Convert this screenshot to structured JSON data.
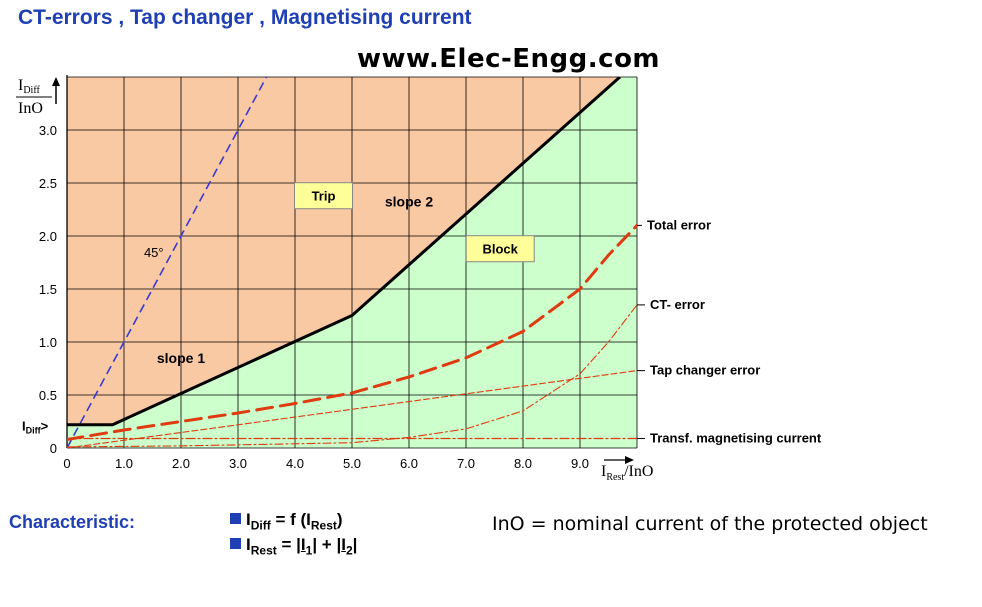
{
  "slide": {
    "title": "CT-errors , Tap changer , Magnetising current",
    "watermark": "www.Elec-Engg.com"
  },
  "chart_data": {
    "type": "line",
    "xlim": [
      0,
      10
    ],
    "ylim": [
      0,
      3.5
    ],
    "x_ticks": [
      "0",
      "1.0",
      "2.0",
      "3.0",
      "4.0",
      "5.0",
      "6.0",
      "7.0",
      "8.0",
      "9.0"
    ],
    "y_ticks": [
      "0",
      "0.5",
      "1.0",
      "1.5",
      "2.0",
      "2.5",
      "3.0"
    ],
    "grid": true,
    "y_axis_label": {
      "num": "I",
      "num_sub": "Diff",
      "den": "InO"
    },
    "x_axis_label": {
      "num": "I",
      "num_sub": "Rest",
      "den": "/InO"
    },
    "idiff_marker": {
      "text": "I",
      "sub": "Diff",
      "suffix": ">"
    },
    "regions": [
      {
        "label": "Trip",
        "fill": "#f9c9a4"
      },
      {
        "label": "Block",
        "fill": "#ccffcc"
      }
    ],
    "characteristic": {
      "color": "#000000",
      "points": [
        [
          0,
          0.22
        ],
        [
          0.8,
          0.22
        ],
        [
          5.0,
          1.25
        ],
        [
          9.7,
          3.5
        ]
      ],
      "labels": [
        "slope 1",
        "slope 2"
      ]
    },
    "reference_45": {
      "label": "45°",
      "color": "#3a3ad0",
      "points": [
        [
          0,
          0
        ],
        [
          3.5,
          3.5
        ]
      ]
    },
    "series": [
      {
        "name": "Total error",
        "color": "#e03a10",
        "points": [
          [
            0,
            0.08
          ],
          [
            1,
            0.17
          ],
          [
            2,
            0.25
          ],
          [
            3,
            0.33
          ],
          [
            4,
            0.42
          ],
          [
            5,
            0.52
          ],
          [
            6,
            0.67
          ],
          [
            7,
            0.85
          ],
          [
            8,
            1.1
          ],
          [
            9,
            1.5
          ],
          [
            9.5,
            1.82
          ],
          [
            10,
            2.1
          ]
        ]
      },
      {
        "name": "CT- error",
        "color": "#e03a10",
        "points": [
          [
            0,
            0.01
          ],
          [
            2,
            0.02
          ],
          [
            4,
            0.04
          ],
          [
            5,
            0.05
          ],
          [
            6,
            0.1
          ],
          [
            7,
            0.18
          ],
          [
            8,
            0.35
          ],
          [
            9,
            0.7
          ],
          [
            9.5,
            1.0
          ],
          [
            10,
            1.35
          ]
        ]
      },
      {
        "name": "Tap changer error",
        "color": "#e03a10",
        "points": [
          [
            0,
            0
          ],
          [
            10,
            0.73
          ]
        ]
      },
      {
        "name": "Transf.  magnetising current",
        "color": "#e03a10",
        "points": [
          [
            0,
            0.09
          ],
          [
            10,
            0.09
          ]
        ]
      }
    ]
  },
  "footer": {
    "characteristic_label": "Characteristic:",
    "formula1": {
      "lhs": "I",
      "lhs_sub": "Diff",
      "mid": " = f (I",
      "mid_sub": "Rest",
      "end": ")"
    },
    "formula2": {
      "lhs": "I",
      "lhs_sub": "Rest",
      "mid": " = |",
      "i1": "I",
      "i1_sub": "1",
      "mid2": "| + |",
      "i2": "I",
      "i2_sub": "2",
      "end": "|"
    },
    "ino_note": "InO = nominal current of the protected object"
  }
}
